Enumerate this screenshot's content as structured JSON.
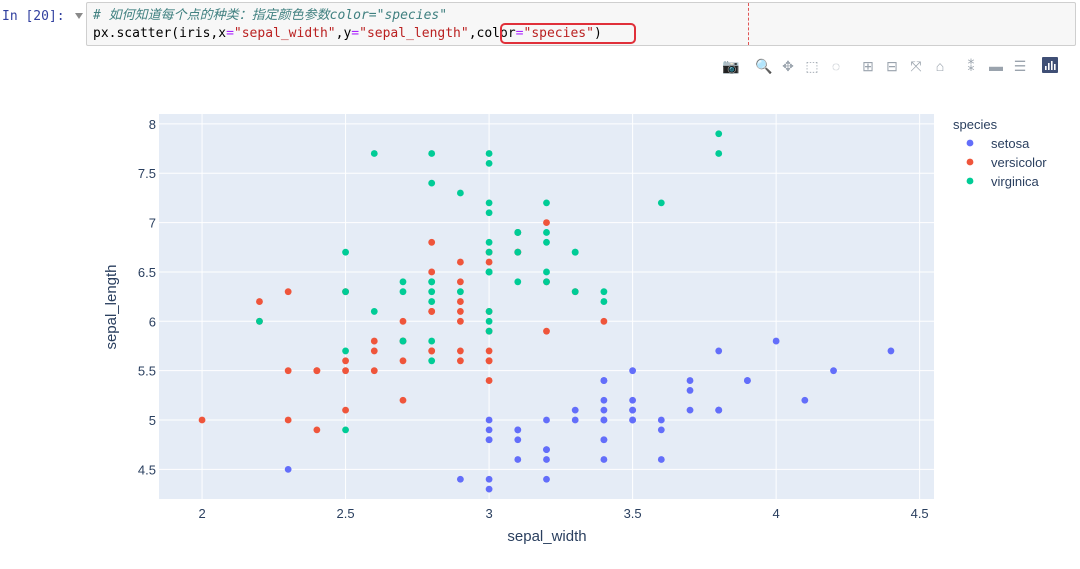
{
  "notebook": {
    "prompt": "In [20]:",
    "code_line1": "# 如何知道每个点的种类：指定颜色参数color=\"species\"",
    "code_line2": {
      "p1": "px.scatter(iris,x",
      "p2": "=",
      "p3": "\"sepal_width\"",
      "p4": ",y",
      "p5": "=",
      "p6": "\"sepal_length\"",
      "p7": ",",
      "p8": "color",
      "p9": "=",
      "p10": "\"species\"",
      "p11": ")"
    }
  },
  "modebar": {
    "buttons": [
      {
        "icon": "camera-icon",
        "glyph": "📷"
      },
      {
        "icon": "zoom-icon",
        "glyph": "🔍"
      },
      {
        "icon": "pan-icon",
        "glyph": "✥"
      },
      {
        "icon": "box-select-icon",
        "glyph": "⬚"
      },
      {
        "icon": "lasso-select-icon",
        "glyph": "◌"
      },
      {
        "icon": "zoom-in-icon",
        "glyph": "⊞"
      },
      {
        "icon": "zoom-out-icon",
        "glyph": "⊟"
      },
      {
        "icon": "autoscale-icon",
        "glyph": "⤧"
      },
      {
        "icon": "reset-axes-icon",
        "glyph": "⌂"
      },
      {
        "icon": "spike-lines-icon",
        "glyph": "⁑"
      },
      {
        "icon": "hover-closest-icon",
        "glyph": "▬"
      },
      {
        "icon": "hover-compare-icon",
        "glyph": "☰"
      }
    ],
    "logo_icon": "plotly-logo-icon"
  },
  "colors": {
    "setosa": "#636efa",
    "versicolor": "#ef553b",
    "virginica": "#00cc96",
    "plot_bg": "#e5ecf6",
    "highlight_box": "#e0303a"
  },
  "chart_data": {
    "type": "scatter",
    "xlabel": "sepal_width",
    "ylabel": "sepal_length",
    "xlim": [
      1.85,
      4.55
    ],
    "ylim": [
      4.2,
      8.1
    ],
    "xticks": [
      2,
      2.5,
      3,
      3.5,
      4,
      4.5
    ],
    "xtick_labels": [
      "2",
      "2.5",
      "3",
      "3.5",
      "4",
      "4.5"
    ],
    "yticks": [
      4.5,
      5,
      5.5,
      6,
      6.5,
      7,
      7.5,
      8
    ],
    "ytick_labels": [
      "4.5",
      "5",
      "5.5",
      "6",
      "6.5",
      "7",
      "7.5",
      "8"
    ],
    "grid": true,
    "legend_title": "species",
    "legend_position": "top-right",
    "series": [
      {
        "name": "setosa",
        "points": [
          [
            3.5,
            5.1
          ],
          [
            3.0,
            4.9
          ],
          [
            3.2,
            4.7
          ],
          [
            3.1,
            4.6
          ],
          [
            3.6,
            5.0
          ],
          [
            3.9,
            5.4
          ],
          [
            3.4,
            4.6
          ],
          [
            3.4,
            5.0
          ],
          [
            2.9,
            4.4
          ],
          [
            3.1,
            4.9
          ],
          [
            3.7,
            5.4
          ],
          [
            3.4,
            4.8
          ],
          [
            3.0,
            4.8
          ],
          [
            3.0,
            4.3
          ],
          [
            4.0,
            5.8
          ],
          [
            4.4,
            5.7
          ],
          [
            3.9,
            5.4
          ],
          [
            3.5,
            5.1
          ],
          [
            3.8,
            5.7
          ],
          [
            3.8,
            5.1
          ],
          [
            3.4,
            5.4
          ],
          [
            3.7,
            5.1
          ],
          [
            3.6,
            4.6
          ],
          [
            3.3,
            5.1
          ],
          [
            3.4,
            4.8
          ],
          [
            3.0,
            5.0
          ],
          [
            3.4,
            5.0
          ],
          [
            3.5,
            5.2
          ],
          [
            3.4,
            5.2
          ],
          [
            3.2,
            4.7
          ],
          [
            3.1,
            4.8
          ],
          [
            3.4,
            5.4
          ],
          [
            4.1,
            5.2
          ],
          [
            4.2,
            5.5
          ],
          [
            3.1,
            4.9
          ],
          [
            3.2,
            5.0
          ],
          [
            3.5,
            5.5
          ],
          [
            3.6,
            4.9
          ],
          [
            3.0,
            4.4
          ],
          [
            3.4,
            5.1
          ],
          [
            3.5,
            5.0
          ],
          [
            2.3,
            4.5
          ],
          [
            3.2,
            4.4
          ],
          [
            3.5,
            5.0
          ],
          [
            3.8,
            5.1
          ],
          [
            3.0,
            4.8
          ],
          [
            3.8,
            5.1
          ],
          [
            3.2,
            4.6
          ],
          [
            3.7,
            5.3
          ],
          [
            3.3,
            5.0
          ]
        ]
      },
      {
        "name": "versicolor",
        "points": [
          [
            3.2,
            7.0
          ],
          [
            3.2,
            6.4
          ],
          [
            3.1,
            6.9
          ],
          [
            2.3,
            5.5
          ],
          [
            2.8,
            6.5
          ],
          [
            2.8,
            5.7
          ],
          [
            3.3,
            6.3
          ],
          [
            2.4,
            4.9
          ],
          [
            2.9,
            6.6
          ],
          [
            2.7,
            5.2
          ],
          [
            2.0,
            5.0
          ],
          [
            3.0,
            5.9
          ],
          [
            2.2,
            6.0
          ],
          [
            2.9,
            6.1
          ],
          [
            2.9,
            5.6
          ],
          [
            3.1,
            6.7
          ],
          [
            3.0,
            5.6
          ],
          [
            2.7,
            5.8
          ],
          [
            2.2,
            6.2
          ],
          [
            2.5,
            5.6
          ],
          [
            3.2,
            5.9
          ],
          [
            2.8,
            6.1
          ],
          [
            2.5,
            6.3
          ],
          [
            2.8,
            6.1
          ],
          [
            2.9,
            6.4
          ],
          [
            3.0,
            6.6
          ],
          [
            2.8,
            6.8
          ],
          [
            3.0,
            6.7
          ],
          [
            2.9,
            6.0
          ],
          [
            2.6,
            5.7
          ],
          [
            2.4,
            5.5
          ],
          [
            2.4,
            5.5
          ],
          [
            2.7,
            5.8
          ],
          [
            2.7,
            6.0
          ],
          [
            3.0,
            5.4
          ],
          [
            3.4,
            6.0
          ],
          [
            3.1,
            6.7
          ],
          [
            2.3,
            6.3
          ],
          [
            3.0,
            5.6
          ],
          [
            2.5,
            5.5
          ],
          [
            2.6,
            5.5
          ],
          [
            3.0,
            6.1
          ],
          [
            2.6,
            5.8
          ],
          [
            2.3,
            5.0
          ],
          [
            2.7,
            5.6
          ],
          [
            3.0,
            5.7
          ],
          [
            2.9,
            5.7
          ],
          [
            2.9,
            6.2
          ],
          [
            2.5,
            5.1
          ],
          [
            2.8,
            5.7
          ]
        ]
      },
      {
        "name": "virginica",
        "points": [
          [
            3.3,
            6.3
          ],
          [
            2.7,
            5.8
          ],
          [
            3.0,
            7.1
          ],
          [
            2.9,
            6.3
          ],
          [
            3.0,
            6.5
          ],
          [
            3.0,
            7.6
          ],
          [
            2.5,
            4.9
          ],
          [
            2.9,
            7.3
          ],
          [
            2.5,
            6.7
          ],
          [
            3.6,
            7.2
          ],
          [
            3.2,
            6.5
          ],
          [
            2.7,
            6.4
          ],
          [
            3.0,
            6.8
          ],
          [
            2.5,
            5.7
          ],
          [
            2.8,
            5.8
          ],
          [
            3.2,
            6.4
          ],
          [
            3.0,
            6.5
          ],
          [
            3.8,
            7.7
          ],
          [
            2.6,
            7.7
          ],
          [
            2.2,
            6.0
          ],
          [
            3.2,
            6.9
          ],
          [
            2.8,
            5.6
          ],
          [
            2.8,
            7.7
          ],
          [
            2.7,
            6.3
          ],
          [
            3.3,
            6.7
          ],
          [
            3.2,
            7.2
          ],
          [
            2.8,
            6.2
          ],
          [
            3.0,
            6.1
          ],
          [
            2.8,
            6.4
          ],
          [
            3.0,
            7.2
          ],
          [
            2.8,
            7.4
          ],
          [
            3.8,
            7.9
          ],
          [
            2.8,
            6.4
          ],
          [
            2.8,
            6.3
          ],
          [
            2.6,
            6.1
          ],
          [
            3.0,
            7.7
          ],
          [
            3.4,
            6.3
          ],
          [
            3.1,
            6.4
          ],
          [
            3.0,
            6.0
          ],
          [
            3.1,
            6.9
          ],
          [
            3.1,
            6.7
          ],
          [
            3.1,
            6.9
          ],
          [
            2.7,
            5.8
          ],
          [
            3.2,
            6.8
          ],
          [
            3.3,
            6.7
          ],
          [
            3.0,
            6.7
          ],
          [
            2.5,
            6.3
          ],
          [
            3.0,
            6.5
          ],
          [
            3.4,
            6.2
          ],
          [
            3.0,
            5.9
          ]
        ]
      }
    ]
  }
}
